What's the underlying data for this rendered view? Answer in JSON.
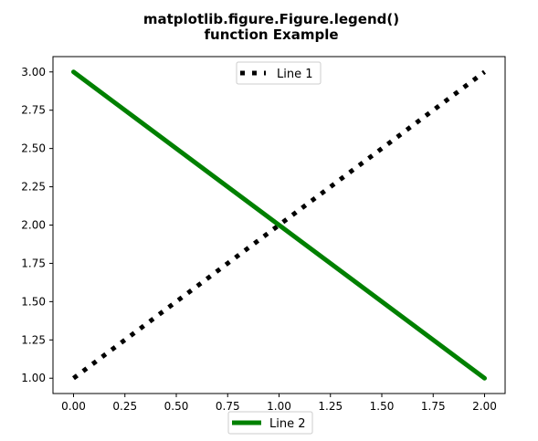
{
  "chart_data": {
    "type": "line",
    "title_lines": [
      "matplotlib.figure.Figure.legend()",
      "function Example"
    ],
    "xlabel": "",
    "ylabel": "",
    "xlim": [
      -0.1,
      2.1
    ],
    "ylim": [
      0.9,
      3.1
    ],
    "grid": false,
    "x_ticks": [
      0.0,
      0.25,
      0.5,
      0.75,
      1.0,
      1.25,
      1.5,
      1.75,
      2.0
    ],
    "x_tick_labels": [
      "0.00",
      "0.25",
      "0.50",
      "0.75",
      "1.00",
      "1.25",
      "1.50",
      "1.75",
      "2.00"
    ],
    "y_ticks": [
      1.0,
      1.25,
      1.5,
      1.75,
      2.0,
      2.25,
      2.5,
      2.75,
      3.0
    ],
    "y_tick_labels": [
      "1.00",
      "1.25",
      "1.50",
      "1.75",
      "2.00",
      "2.25",
      "2.50",
      "2.75",
      "3.00"
    ],
    "series": [
      {
        "name": "Line 1",
        "x": [
          0,
          1,
          2
        ],
        "y": [
          1,
          2,
          3
        ],
        "color": "#000000",
        "style": "dotted"
      },
      {
        "name": "Line 2",
        "x": [
          0,
          1,
          2
        ],
        "y": [
          3,
          2,
          1
        ],
        "color": "#008000",
        "style": "solid"
      }
    ],
    "legends": [
      {
        "placement": "upper-center",
        "entries": [
          "Line 1"
        ]
      },
      {
        "placement": "lower-center",
        "entries": [
          "Line 2"
        ]
      }
    ]
  }
}
